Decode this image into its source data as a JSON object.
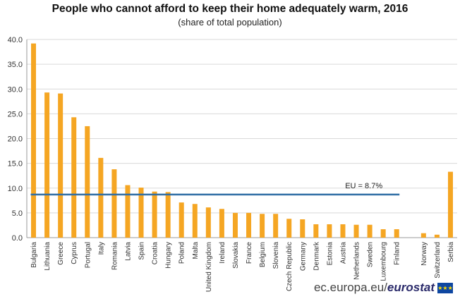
{
  "title": "People who cannot afford to keep their home adequately warm, 2016",
  "subtitle": "(share of total population)",
  "footer": {
    "site": "ec.europa.eu/",
    "brand": "eurostat"
  },
  "chart_data": {
    "type": "bar",
    "categories": [
      "Bulgaria",
      "Lithuania",
      "Greece",
      "Cyprus",
      "Portugal",
      "Italy",
      "Romania",
      "Latvia",
      "Spain",
      "Croatia",
      "Hungary",
      "Poland",
      "Malta",
      "United Kingdom",
      "Ireland",
      "Slovakia",
      "France",
      "Belgium",
      "Slovenia",
      "Czech Republic",
      "Germany",
      "Denmark",
      "Estonia",
      "Austria",
      "Netherlands",
      "Sweden",
      "Luxembourg",
      "Finland",
      "",
      "Norway",
      "Switzerland",
      "Serbia"
    ],
    "values": [
      39.2,
      29.3,
      29.1,
      24.3,
      22.5,
      16.1,
      13.8,
      10.6,
      10.1,
      9.3,
      9.2,
      7.1,
      6.8,
      6.1,
      5.8,
      5.0,
      5.0,
      4.8,
      4.8,
      3.8,
      3.7,
      2.7,
      2.7,
      2.7,
      2.6,
      2.6,
      1.7,
      1.7,
      null,
      0.9,
      0.6,
      13.3
    ],
    "ylim": [
      0,
      40
    ],
    "yticks": [
      "0.0",
      "5.0",
      "10.0",
      "15.0",
      "20.0",
      "25.0",
      "30.0",
      "35.0",
      "40.0"
    ],
    "grid": true,
    "bar_color": "#f5a623",
    "reference_line": {
      "label": "EU = 8.7%",
      "value": 8.7,
      "color": "#2e6da4"
    }
  }
}
